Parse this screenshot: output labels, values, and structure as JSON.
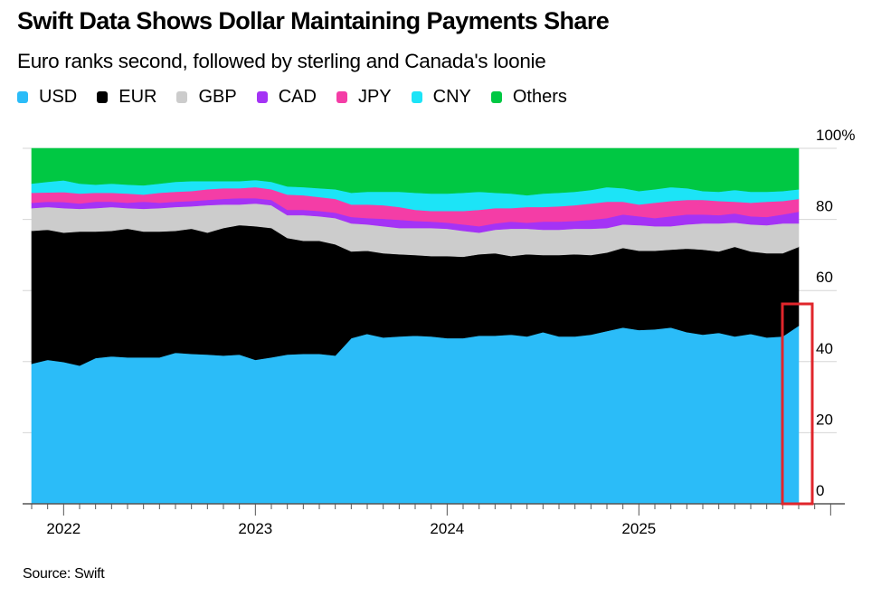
{
  "chart_data": {
    "type": "area",
    "stacked": true,
    "title": "Swift Data Shows Dollar Maintaining Payments Share",
    "subtitle": "Euro ranks second, followed by sterling and Canada's loonie",
    "source": "Source: Swift",
    "x_start": "2021-11",
    "x_end": "2025-11",
    "x_frequency": "monthly",
    "x_tick_labels": [
      "2022",
      "2023",
      "2024",
      "2025"
    ],
    "y_tick_labels": [
      "0",
      "20",
      "40",
      "60",
      "80",
      "100%"
    ],
    "ylim": [
      0,
      100
    ],
    "y_axis_side": "right",
    "grid": true,
    "legend_placement": "top-left",
    "highlight": "red box around latest month",
    "highlight_color": "#e0262b",
    "series": [
      {
        "name": "USD",
        "color": "#2bbcf8",
        "values": [
          39.4,
          40.5,
          39.9,
          38.9,
          41.0,
          41.5,
          41.2,
          41.2,
          41.2,
          42.5,
          42.2,
          42.0,
          41.7,
          42.0,
          40.5,
          41.2,
          42.0,
          42.2,
          42.2,
          41.7,
          46.6,
          47.8,
          46.8,
          47.1,
          47.3,
          47.1,
          46.6,
          46.6,
          47.3,
          47.3,
          47.6,
          47.1,
          48.3,
          47.1,
          47.1,
          47.6,
          48.6,
          49.6,
          48.9,
          49.1,
          49.6,
          48.3,
          47.6,
          48.1,
          47.1,
          47.8,
          46.8,
          47.1,
          50.1
        ]
      },
      {
        "name": "EUR",
        "color": "#000000",
        "values": [
          37.4,
          36.6,
          36.4,
          37.7,
          35.6,
          35.3,
          36.2,
          35.4,
          35.4,
          34.3,
          35.2,
          34.3,
          35.9,
          36.4,
          37.6,
          36.4,
          32.8,
          31.8,
          31.8,
          31.3,
          24.4,
          23.4,
          23.7,
          23.1,
          22.7,
          22.6,
          23.1,
          22.9,
          22.9,
          23.2,
          22.1,
          23.1,
          21.7,
          22.9,
          23.1,
          22.4,
          22.1,
          22.4,
          22.3,
          22.1,
          21.9,
          23.5,
          23.9,
          22.9,
          25.2,
          23.2,
          23.7,
          23.4,
          22.2
        ]
      },
      {
        "name": "GBP",
        "color": "#cccccc",
        "values": [
          6.4,
          6.4,
          6.9,
          6.4,
          6.6,
          6.7,
          5.8,
          6.4,
          6.6,
          6.7,
          6.3,
          7.7,
          6.6,
          5.8,
          6.4,
          6.4,
          6.4,
          7.2,
          6.9,
          7.4,
          7.9,
          7.4,
          7.6,
          7.4,
          7.6,
          7.9,
          7.7,
          7.3,
          6.1,
          6.6,
          7.7,
          7.2,
          7.1,
          7.1,
          7.2,
          7.4,
          6.9,
          6.6,
          7.2,
          6.9,
          6.6,
          6.8,
          7.4,
          7.9,
          6.8,
          7.6,
          7.9,
          8.4,
          6.6
        ]
      },
      {
        "name": "CAD",
        "color": "#a433f5",
        "values": [
          1.5,
          1.5,
          1.7,
          1.5,
          1.8,
          1.5,
          1.5,
          2.0,
          1.5,
          1.5,
          1.5,
          1.5,
          1.6,
          1.8,
          1.5,
          1.5,
          1.5,
          1.5,
          1.5,
          1.5,
          1.8,
          1.8,
          2.1,
          2.3,
          2.0,
          1.8,
          1.7,
          1.8,
          1.8,
          1.8,
          2.0,
          1.7,
          2.3,
          2.3,
          2.2,
          2.5,
          2.8,
          2.8,
          2.5,
          2.3,
          2.8,
          2.8,
          2.5,
          2.3,
          2.6,
          2.3,
          2.3,
          2.5,
          3.3
        ]
      },
      {
        "name": "JPY",
        "color": "#f43da6",
        "values": [
          2.8,
          2.6,
          2.8,
          2.8,
          2.5,
          2.5,
          2.6,
          2.0,
          2.8,
          2.8,
          2.8,
          3.0,
          3.0,
          2.8,
          3.1,
          3.0,
          4.3,
          4.1,
          3.9,
          3.9,
          3.5,
          3.8,
          3.8,
          3.6,
          3.1,
          3.0,
          3.3,
          3.8,
          4.6,
          4.3,
          3.8,
          4.4,
          4.1,
          4.3,
          4.4,
          4.6,
          4.6,
          3.6,
          3.3,
          4.3,
          4.3,
          4.1,
          4.1,
          4.0,
          3.3,
          3.8,
          4.3,
          3.8,
          3.6
        ]
      },
      {
        "name": "CNY",
        "color": "#1ce4f7",
        "values": [
          2.6,
          3.0,
          3.3,
          2.8,
          2.3,
          2.6,
          2.5,
          2.6,
          2.6,
          2.8,
          2.8,
          2.3,
          2.0,
          2.0,
          2.0,
          2.1,
          2.3,
          2.3,
          2.5,
          2.7,
          3.3,
          3.6,
          3.8,
          4.3,
          4.8,
          4.9,
          4.9,
          5.1,
          5.1,
          4.3,
          4.1,
          3.3,
          3.8,
          3.8,
          3.8,
          3.8,
          4.1,
          3.8,
          3.8,
          3.8,
          3.9,
          3.3,
          2.5,
          2.6,
          3.3,
          3.1,
          2.8,
          2.8,
          2.7
        ]
      },
      {
        "name": "Others",
        "color": "#00c843",
        "values": [
          9.9,
          9.4,
          9.0,
          9.9,
          10.2,
          9.9,
          10.2,
          10.4,
          9.9,
          9.4,
          9.2,
          9.2,
          9.2,
          9.2,
          8.9,
          9.4,
          10.7,
          10.9,
          11.2,
          11.5,
          12.5,
          12.2,
          12.2,
          12.2,
          12.5,
          12.7,
          12.7,
          12.5,
          12.2,
          12.5,
          12.7,
          13.2,
          12.7,
          12.5,
          12.2,
          11.7,
          10.9,
          11.2,
          12.0,
          11.5,
          10.9,
          11.2,
          12.0,
          12.2,
          11.7,
          12.2,
          12.2,
          12.0,
          11.5
        ]
      }
    ]
  }
}
